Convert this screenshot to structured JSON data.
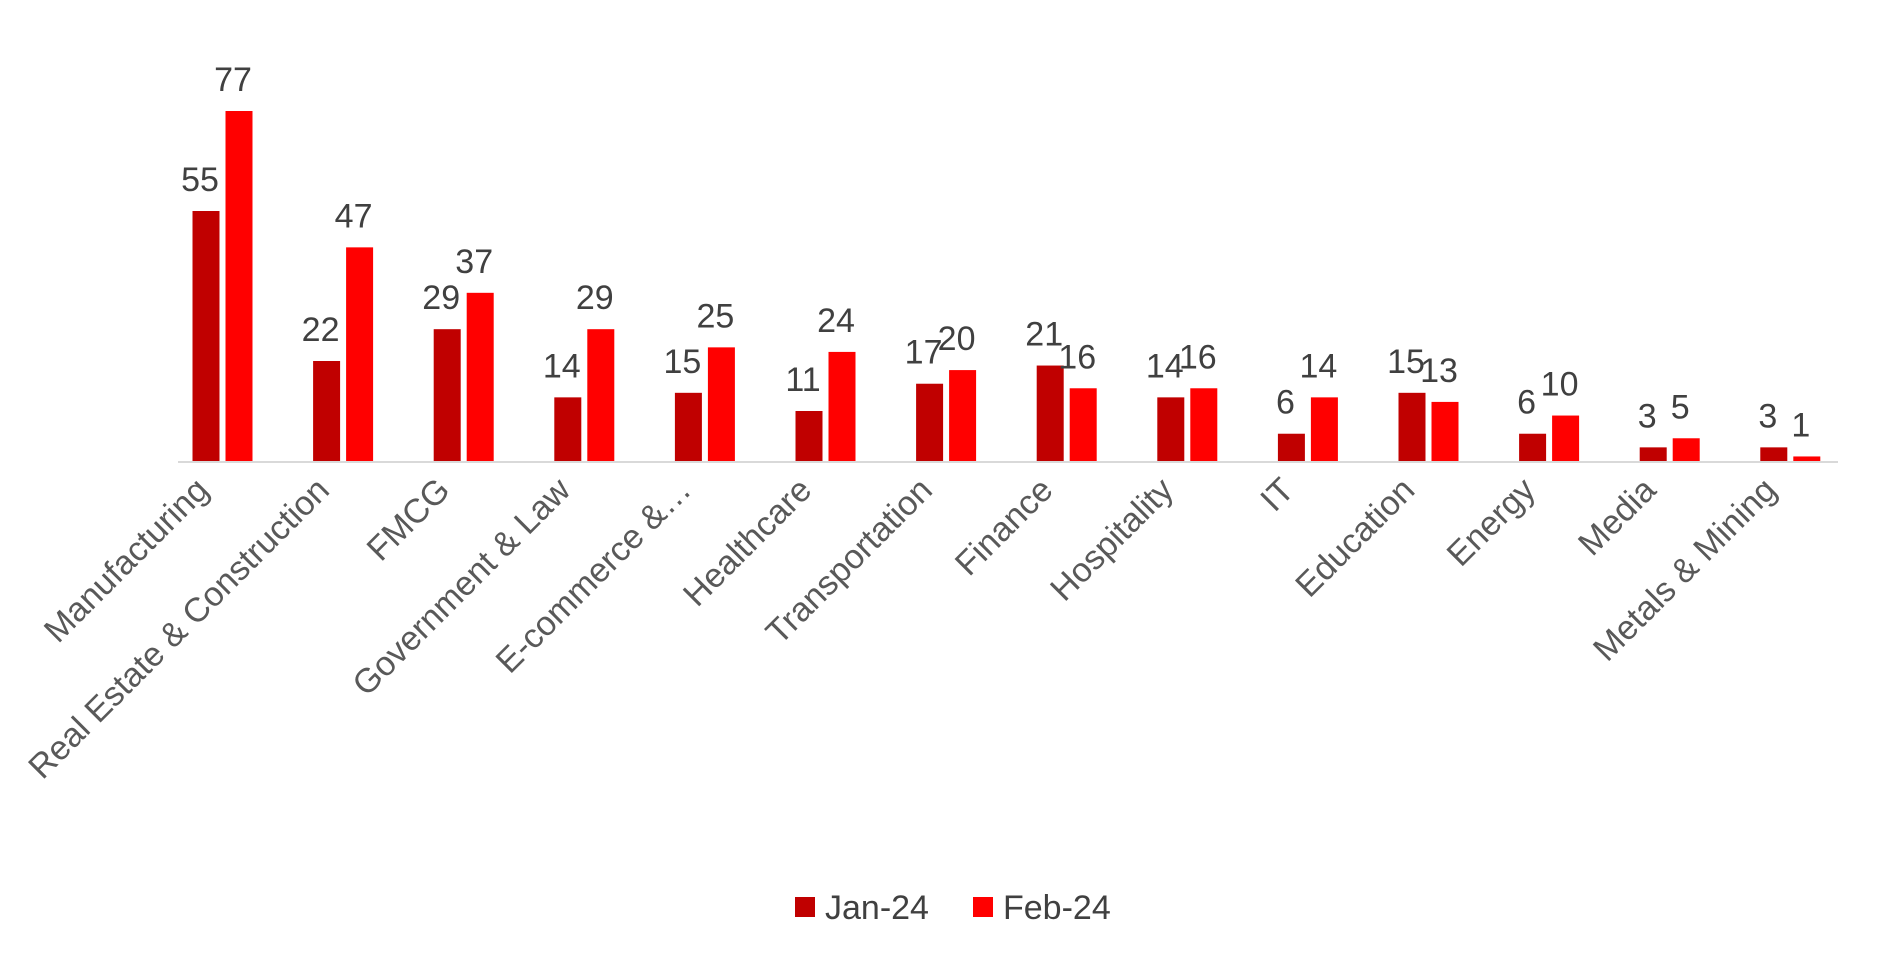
{
  "chart_data": {
    "type": "bar",
    "title": "",
    "xlabel": "",
    "ylabel": "",
    "categories": [
      "Manufacturing",
      "Real Estate & Construction",
      "FMCG",
      "Government & Law",
      "E-commerce &…",
      "Healthcare",
      "Transportation",
      "Finance",
      "Hospitality",
      "IT",
      "Education",
      "Energy",
      "Media",
      "Metals & Mining"
    ],
    "series": [
      {
        "name": "Jan-24",
        "color": "#C00000",
        "values": [
          55,
          22,
          29,
          14,
          15,
          11,
          17,
          21,
          14,
          6,
          15,
          6,
          3,
          3
        ]
      },
      {
        "name": "Feb-24",
        "color": "#FF0000",
        "values": [
          77,
          47,
          37,
          29,
          25,
          24,
          20,
          16,
          16,
          14,
          13,
          10,
          5,
          1
        ]
      }
    ],
    "ylim": [
      0,
      77
    ],
    "grid": false,
    "data_labels": true,
    "legend_position": "bottom"
  }
}
